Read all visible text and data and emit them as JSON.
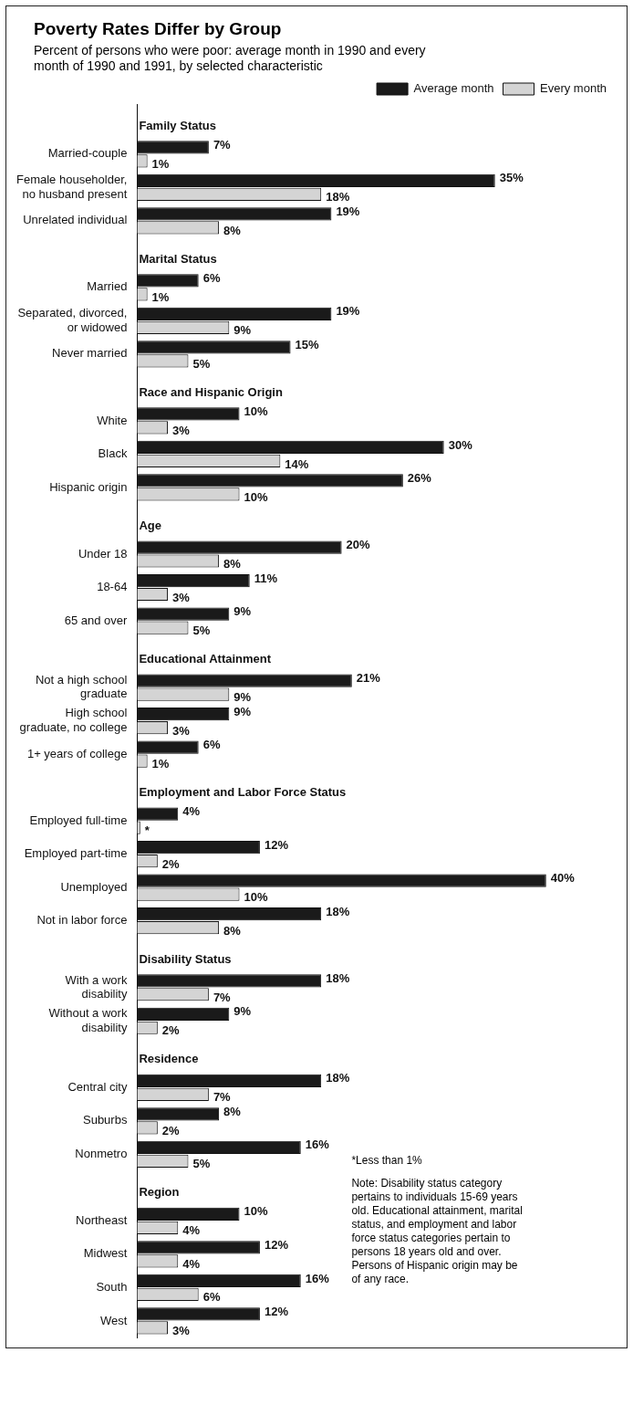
{
  "chart_data": {
    "type": "bar",
    "orientation": "horizontal",
    "title": "Poverty Rates Differ by Group",
    "subtitle": "Percent of persons who were poor: average month in 1990 and every month of 1990 and 1991, by selected characteristic",
    "categories": [
      "Family Status",
      "Married-couple",
      "Female householder, no husband present",
      "Unrelated individual",
      "Marital Status",
      "Married",
      "Separated, divorced, or widowed",
      "Never married",
      "Race and Hispanic Origin",
      "White",
      "Black",
      "Hispanic origin",
      "Age",
      "Under 18",
      "18-64",
      "65 and over",
      "Educational Attainment",
      "Not a high school graduate",
      "High school graduate, no college",
      "1+ years of college",
      "Employment and Labor Force Status",
      "Employed full-time",
      "Employed part-time",
      "Unemployed",
      "Not in labor force",
      "Disability Status",
      "With a work disability",
      "Without a work disability",
      "Residence",
      "Central city",
      "Suburbs",
      "Nonmetro",
      "Region",
      "Northeast",
      "Midwest",
      "South",
      "West"
    ],
    "series": [
      {
        "name": "Average month",
        "color": "#1a1a1a",
        "values": [
          null,
          7,
          35,
          19,
          null,
          6,
          19,
          15,
          null,
          10,
          30,
          26,
          null,
          20,
          11,
          9,
          null,
          21,
          9,
          6,
          null,
          4,
          12,
          40,
          18,
          null,
          18,
          9,
          null,
          18,
          8,
          16,
          null,
          10,
          12,
          16,
          12
        ],
        "value_labels": [
          null,
          "7%",
          "35%",
          "19%",
          null,
          "6%",
          "19%",
          "15%",
          null,
          "10%",
          "30%",
          "26%",
          null,
          "20%",
          "11%",
          "9%",
          null,
          "21%",
          "9%",
          "6%",
          null,
          "4%",
          "12%",
          "40%",
          "18%",
          null,
          "18%",
          "9%",
          null,
          "18%",
          "8%",
          "16%",
          null,
          "10%",
          "12%",
          "16%",
          "12%"
        ]
      },
      {
        "name": "Every month",
        "color": "#d4d4d4",
        "values": [
          null,
          1,
          18,
          8,
          null,
          1,
          9,
          5,
          null,
          3,
          14,
          10,
          null,
          8,
          3,
          5,
          null,
          9,
          3,
          1,
          null,
          0.3,
          2,
          10,
          8,
          null,
          7,
          2,
          null,
          7,
          2,
          5,
          null,
          4,
          4,
          6,
          3
        ],
        "value_labels": [
          null,
          "1%",
          "18%",
          "8%",
          null,
          "1%",
          "9%",
          "5%",
          null,
          "3%",
          "14%",
          "10%",
          null,
          "8%",
          "3%",
          "5%",
          null,
          "9%",
          "3%",
          "1%",
          null,
          "*",
          "2%",
          "10%",
          "8%",
          null,
          "7%",
          "2%",
          null,
          "7%",
          "2%",
          "5%",
          null,
          "4%",
          "4%",
          "6%",
          "3%"
        ]
      }
    ],
    "legend": "top",
    "annotations": [
      "*Less than 1%",
      "Note: Disability status category pertains to individuals 15-69 years old. Educational attainment, marital status, and employment and labor force status categories pertain to persons 18 years old and over. Persons of Hispanic origin may be of any race."
    ]
  }
}
